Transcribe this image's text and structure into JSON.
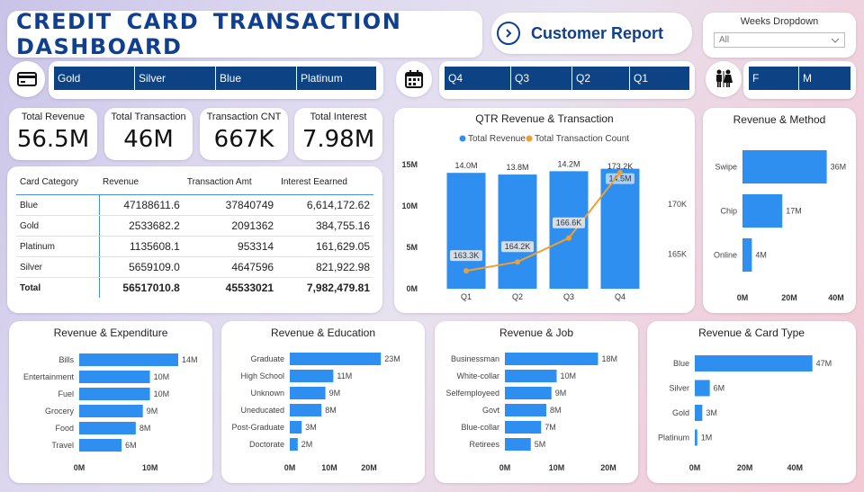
{
  "header": {
    "title": "CREDIT  CARD  TRANSACTION  DASHBOARD",
    "report_label": "Customer Report",
    "weeks_label": "Weeks Dropdown",
    "weeks_value": "All"
  },
  "slicers": {
    "card": [
      "Gold",
      "Silver",
      "Blue",
      "Platinum"
    ],
    "quarter": [
      "Q4",
      "Q3",
      "Q2",
      "Q1"
    ],
    "gender": [
      "F",
      "M"
    ]
  },
  "icons": {
    "card": "credit-card-icon",
    "calendar": "calendar-icon",
    "gender": "gender-icon",
    "report": "chevron-right-icon",
    "dropdown": "chevron-down-icon"
  },
  "kpis": [
    {
      "label": "Total Revenue",
      "value": "56.5M"
    },
    {
      "label": "Total Transaction",
      "value": "46M"
    },
    {
      "label": "Transaction CNT",
      "value": "667K"
    },
    {
      "label": "Total Interest",
      "value": "7.98M"
    }
  ],
  "table": {
    "headers": [
      "Card Category",
      "Revenue",
      "Transaction Amt",
      "Interest Eearned"
    ],
    "rows": [
      [
        "Blue",
        "47188611.6",
        "37840749",
        "6,614,172.62"
      ],
      [
        "Gold",
        "2533682.2",
        "2091362",
        "384,755.16"
      ],
      [
        "Platinum",
        "1135608.1",
        "953314",
        "161,629.05"
      ],
      [
        "Silver",
        "5659109.0",
        "4647596",
        "821,922.98"
      ]
    ],
    "total": [
      "Total",
      "56517010.8",
      "45533021",
      "7,982,479.81"
    ]
  },
  "colors": {
    "accent": "#2f8ff0",
    "line": "#f0a030",
    "brand": "#0f3f8f",
    "slicer": "#0d4285"
  },
  "chart_data": [
    {
      "id": "qtr",
      "type": "bar",
      "title": "QTR Revenue & Transaction",
      "categories": [
        "Q1",
        "Q2",
        "Q3",
        "Q4"
      ],
      "series": [
        {
          "name": "Total Revenue",
          "type": "bar",
          "values": [
            14.0,
            13.8,
            14.2,
            14.5
          ],
          "labels": [
            "14.0M",
            "13.8M",
            "14.2M",
            "14.5M"
          ]
        },
        {
          "name": "Total Transaction Count",
          "type": "line",
          "values": [
            163.3,
            164.2,
            166.6,
            173.2
          ],
          "labels": [
            "163.3K",
            "164.2K",
            "166.6K",
            "173.2K"
          ]
        }
      ],
      "y_ticks": [
        "0M",
        "5M",
        "10M",
        "15M"
      ],
      "y2_ticks": [
        "165K",
        "170K"
      ],
      "legend": "top"
    },
    {
      "id": "method",
      "type": "bar",
      "orientation": "horizontal",
      "title": "Revenue & Method",
      "categories": [
        "Swipe",
        "Chip",
        "Online"
      ],
      "values": [
        36,
        17,
        4
      ],
      "labels": [
        "36M",
        "17M",
        "4M"
      ],
      "x_ticks": [
        "0M",
        "20M",
        "40M"
      ],
      "xlim": [
        0,
        40
      ]
    },
    {
      "id": "expenditure",
      "type": "bar",
      "orientation": "horizontal",
      "title": "Revenue & Expenditure",
      "categories": [
        "Bills",
        "Entertainment",
        "Fuel",
        "Grocery",
        "Food",
        "Travel"
      ],
      "values": [
        14,
        10,
        10,
        9,
        8,
        6
      ],
      "labels": [
        "14M",
        "10M",
        "10M",
        "9M",
        "8M",
        "6M"
      ],
      "x_ticks": [
        "0M",
        "10M"
      ],
      "xlim": [
        0,
        14
      ]
    },
    {
      "id": "education",
      "type": "bar",
      "orientation": "horizontal",
      "title": "Revenue & Education",
      "categories": [
        "Graduate",
        "High School",
        "Unknown",
        "Uneducated",
        "Post-Graduate",
        "Doctorate"
      ],
      "values": [
        23,
        11,
        9,
        8,
        3,
        2
      ],
      "labels": [
        "23M",
        "11M",
        "9M",
        "8M",
        "3M",
        "2M"
      ],
      "x_ticks": [
        "0M",
        "10M",
        "20M"
      ],
      "xlim": [
        0,
        25
      ]
    },
    {
      "id": "job",
      "type": "bar",
      "orientation": "horizontal",
      "title": "Revenue & Job",
      "categories": [
        "Businessman",
        "White-collar",
        "Selfemployeed",
        "Govt",
        "Blue-collar",
        "Retirees"
      ],
      "values": [
        18,
        10,
        9,
        8,
        7,
        5
      ],
      "labels": [
        "18M",
        "10M",
        "9M",
        "8M",
        "7M",
        "5M"
      ],
      "x_ticks": [
        "0M",
        "10M",
        "20M"
      ],
      "xlim": [
        0,
        20
      ]
    },
    {
      "id": "cardtype",
      "type": "bar",
      "orientation": "horizontal",
      "title": "Revenue & Card Type",
      "categories": [
        "Blue",
        "Silver",
        "Gold",
        "Platinum"
      ],
      "values": [
        47,
        6,
        3,
        1
      ],
      "labels": [
        "47M",
        "6M",
        "3M",
        "1M"
      ],
      "x_ticks": [
        "0M",
        "20M",
        "40M"
      ],
      "xlim": [
        0,
        50
      ]
    }
  ]
}
